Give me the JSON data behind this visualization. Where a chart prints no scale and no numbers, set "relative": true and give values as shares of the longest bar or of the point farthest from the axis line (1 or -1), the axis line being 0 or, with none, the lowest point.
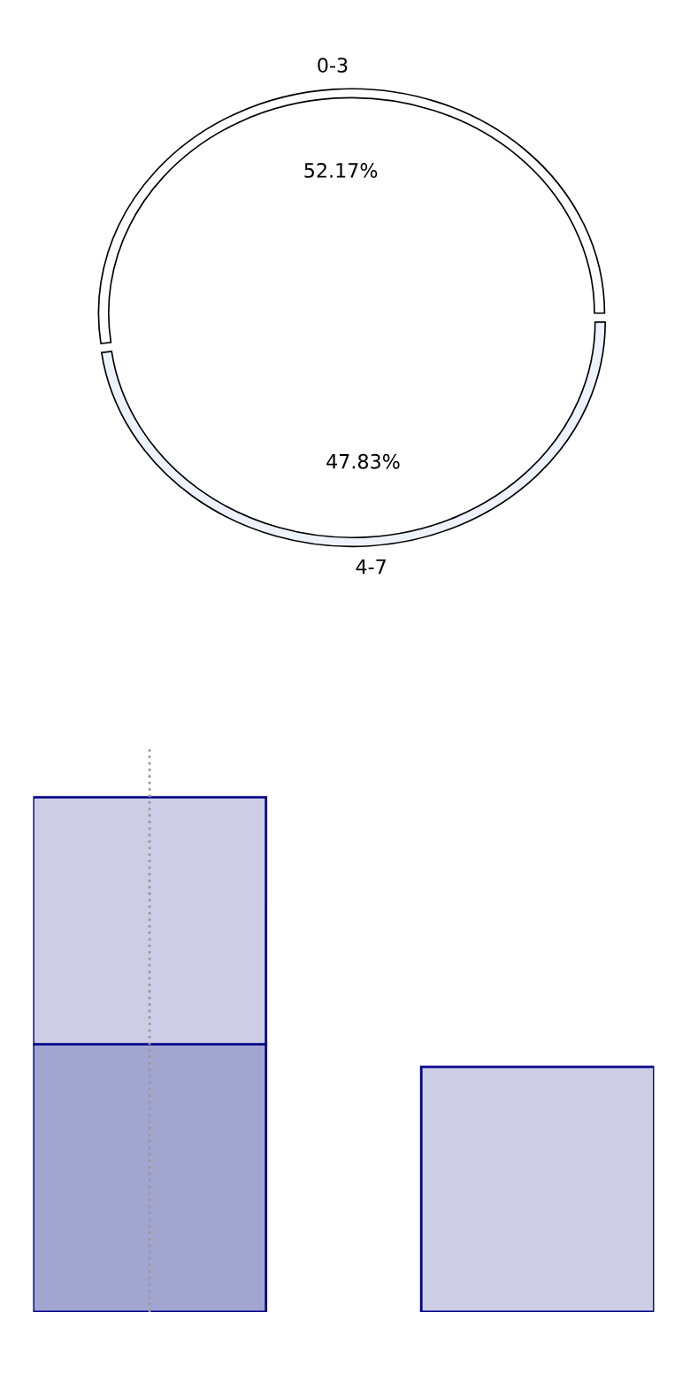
{
  "chart_data": [
    {
      "type": "donut",
      "categories": [
        "0-3",
        "4-7"
      ],
      "values": [
        52.17,
        47.83
      ],
      "colors": [
        "#ffffff",
        "#eef2fc"
      ],
      "value_labels": [
        "52.17%",
        "47.83%"
      ]
    },
    {
      "type": "bar",
      "relative": true,
      "stacked": true,
      "categories": [
        null,
        null
      ],
      "series": [
        {
          "color": "#a3a5d1",
          "values": [
            0.52,
            null
          ]
        },
        {
          "color": "#cdcee5",
          "values": [
            0.48,
            0.476
          ]
        }
      ]
    }
  ]
}
